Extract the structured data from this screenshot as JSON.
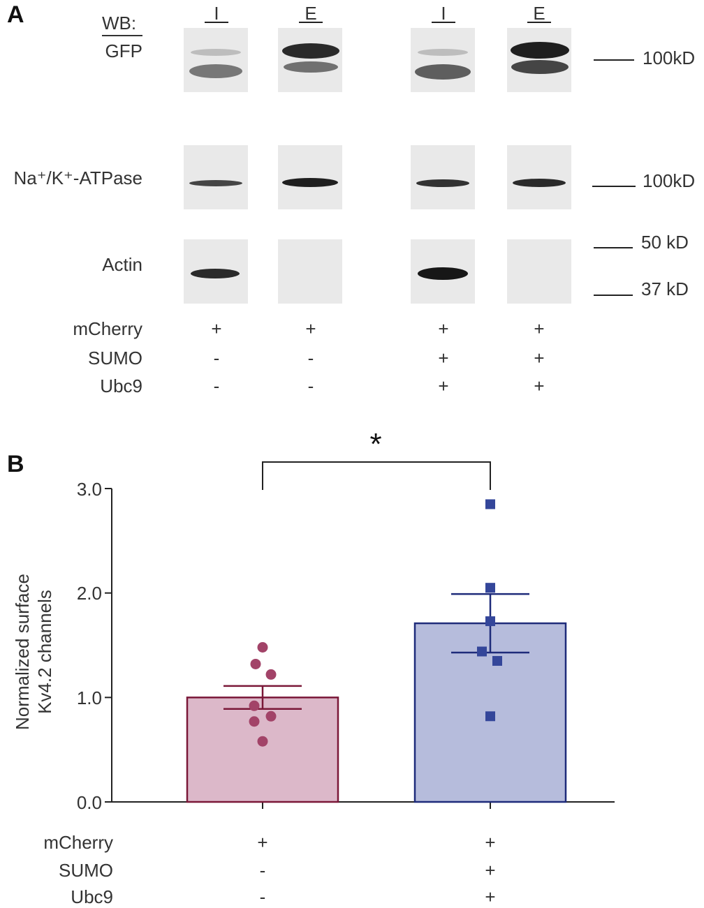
{
  "panelA": {
    "letter": "A",
    "wb_label": "WB:",
    "rows": [
      "GFP",
      "Na⁺/K⁺-ATPase",
      "Actin"
    ],
    "lanes": [
      "I",
      "E",
      "I",
      "E"
    ],
    "markers": [
      "100kD",
      "100kD",
      "50 kD",
      "37 kD"
    ],
    "conditions": [
      {
        "name": "mCherry",
        "signs": [
          "+",
          "+",
          "+",
          "+"
        ]
      },
      {
        "name": "SUMO",
        "signs": [
          "-",
          "-",
          "+",
          "+"
        ]
      },
      {
        "name": "Ubc9",
        "signs": [
          "-",
          "-",
          "+",
          "+"
        ]
      }
    ]
  },
  "panelB": {
    "letter": "B",
    "significance": "*",
    "conditions": [
      {
        "name": "mCherry",
        "signs": [
          "+",
          "+"
        ]
      },
      {
        "name": "SUMO",
        "signs": [
          "-",
          "+"
        ]
      },
      {
        "name": "Ubc9",
        "signs": [
          "-",
          "+"
        ]
      }
    ]
  },
  "chart_data": {
    "type": "bar",
    "ylabel_lines": [
      "Normalized surface",
      "Kv4.2 channels"
    ],
    "ylim": [
      0,
      3
    ],
    "yticks": [
      "0.0",
      "1.0",
      "2.0",
      "3.0"
    ],
    "yticks_values": [
      0,
      1,
      2,
      3
    ],
    "grid": false,
    "series": [
      {
        "values": [
          1.0
        ],
        "sem": 0.11,
        "points": [
          1.48,
          1.32,
          1.22,
          0.92,
          0.82,
          0.77,
          0.58
        ],
        "fill": "#dcb8c9",
        "stroke": "#7a1838",
        "marker": "circle",
        "marker_color": "#a24368"
      },
      {
        "values": [
          1.71
        ],
        "sem": 0.28,
        "points": [
          2.85,
          2.05,
          1.73,
          1.44,
          1.35,
          0.82
        ],
        "fill": "#b6bcdc",
        "stroke": "#1e2b7a",
        "marker": "square",
        "marker_color": "#34469a"
      }
    ]
  }
}
